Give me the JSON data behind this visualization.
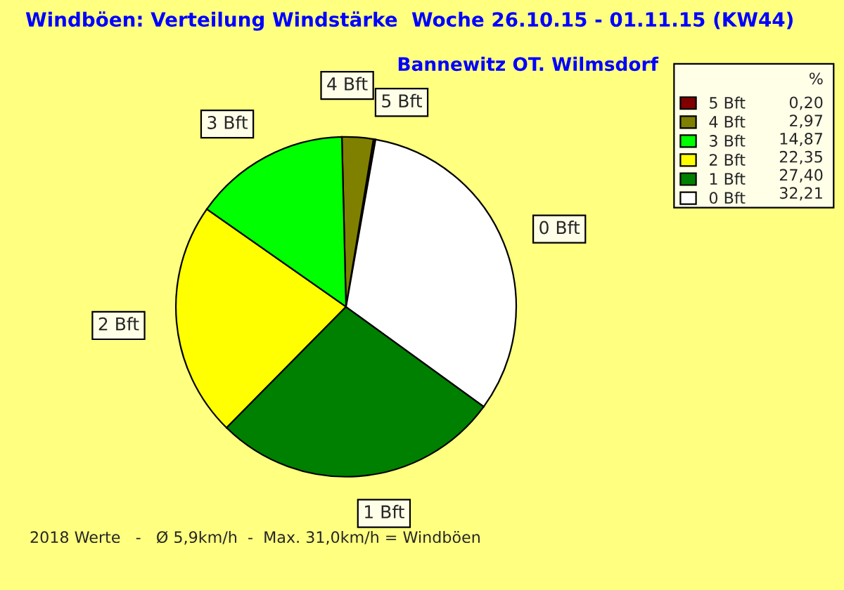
{
  "chart_data": {
    "type": "pie",
    "title": "Windböen: Verteilung Windstärke  Woche 26.10.15 - 01.11.15 (KW44)",
    "subtitle": "Bannewitz OT. Wilmsdorf",
    "categories": [
      "5 Bft",
      "4 Bft",
      "3 Bft",
      "2 Bft",
      "1 Bft",
      "0 Bft"
    ],
    "values": [
      0.2,
      2.97,
      14.87,
      22.35,
      27.4,
      32.21
    ],
    "value_labels": [
      "0,20",
      "2,97",
      "14,87",
      "22,35",
      "27,40",
      "32,21"
    ],
    "colors": [
      "#800000",
      "#808000",
      "#00ff00",
      "#ffff00",
      "#008000",
      "#ffffff"
    ],
    "legend": "top right",
    "legend_title": "%",
    "annotations": [
      "2018 Werte   -   Ø 5,9km/h  -  Max. 31,0km/h = Windböen"
    ]
  }
}
